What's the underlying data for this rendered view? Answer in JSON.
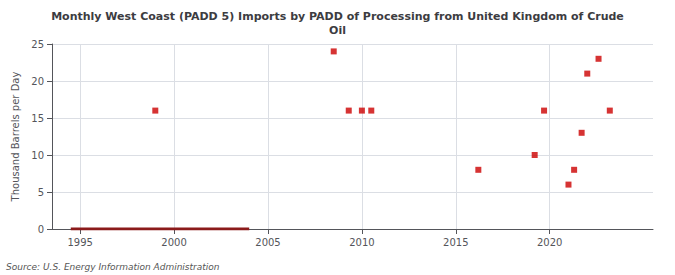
{
  "chart_data": {
    "type": "scatter",
    "title": "Monthly West Coast (PADD 5) Imports by PADD of Processing from United Kingdom of Crude\nOil",
    "ylabel": "Thousand Barrels per Day",
    "annotation": "Source: U.S. Energy Information Administration",
    "xlim": [
      1993.5,
      2025.5
    ],
    "xticks": [
      1995,
      2000,
      2005,
      2010,
      2015,
      2020
    ],
    "ylim": [
      0,
      25
    ],
    "yticks": [
      0,
      5,
      10,
      15,
      20,
      25
    ],
    "grid": true,
    "series": [
      {
        "type": "line",
        "color": "#8B1A1A",
        "line_style": "solid",
        "x": [
          1994.5,
          2004.0
        ],
        "values": [
          0,
          0
        ]
      },
      {
        "type": "scatter",
        "color": "#cc0000",
        "marker": "square",
        "x": [
          1999.0,
          2008.5,
          2009.3,
          2010.0,
          2010.5,
          2016.2,
          2019.2,
          2019.7,
          2021.0,
          2021.3,
          2021.7,
          2022.0,
          2022.6,
          2023.2
        ],
        "values": [
          16,
          24,
          16,
          16,
          16,
          8,
          10,
          16,
          6,
          8,
          13,
          21,
          23,
          16
        ]
      }
    ]
  }
}
